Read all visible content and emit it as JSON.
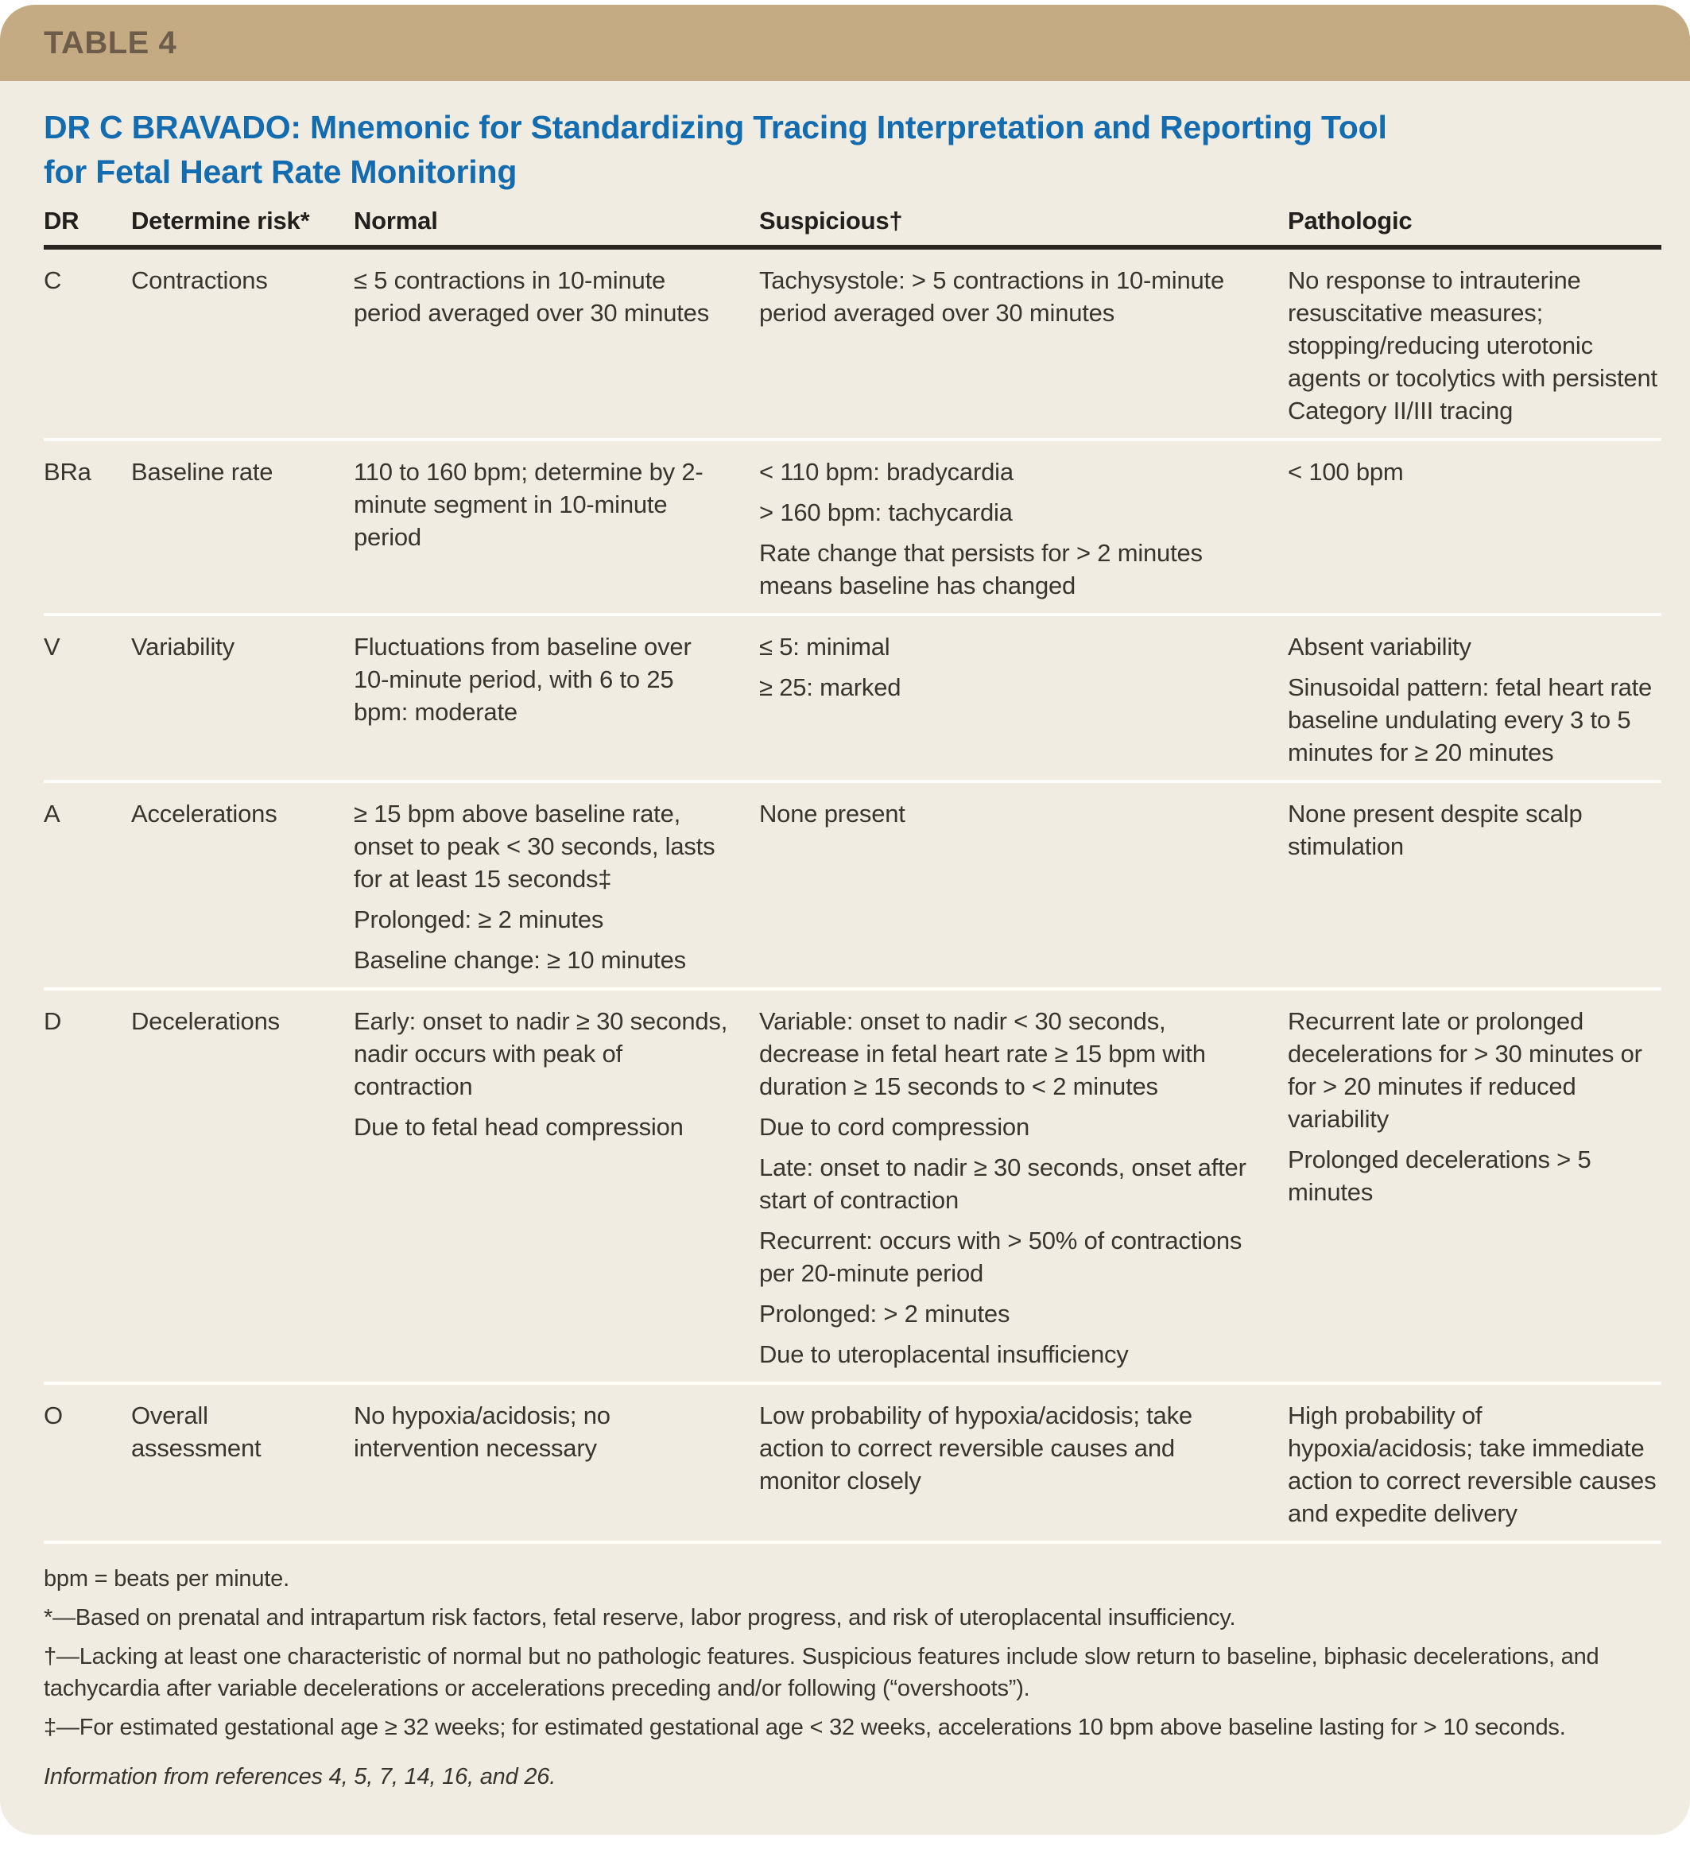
{
  "table_label": "TABLE 4",
  "title": {
    "line1": "DR C BRAVADO: Mnemonic for Standardizing Tracing Interpretation and Reporting Tool",
    "line2": "for Fetal Heart Rate Monitoring"
  },
  "columns": [
    "DR",
    "Determine risk*",
    "Normal",
    "Suspicious†",
    "Pathologic"
  ],
  "rows": [
    {
      "abbr": "C",
      "label": "Contractions",
      "normal": [
        "≤ 5 contractions in 10-minute period averaged over 30 minutes"
      ],
      "suspicious": [
        "Tachysystole: > 5 contractions in 10-minute period averaged over 30 minutes"
      ],
      "pathologic": [
        "No response to intrauterine resuscitative measures; stopping/reducing uterotonic agents or tocolytics with persistent Category II/III tracing"
      ]
    },
    {
      "abbr": "BRa",
      "label": "Baseline rate",
      "normal": [
        "110 to 160 bpm; determine by 2-minute segment in 10-minute period"
      ],
      "suspicious": [
        "< 110 bpm: bradycardia",
        "> 160 bpm: tachycardia",
        "Rate change that persists for > 2 minutes means baseline has changed"
      ],
      "pathologic": [
        "< 100 bpm"
      ]
    },
    {
      "abbr": "V",
      "label": "Variability",
      "normal": [
        "Fluctuations from baseline over 10-minute period, with 6 to 25 bpm: moderate"
      ],
      "suspicious": [
        "≤ 5: minimal",
        "≥ 25: marked"
      ],
      "pathologic": [
        "Absent variability",
        "Sinusoidal pattern: fetal heart rate baseline undulating every 3 to 5 minutes for ≥ 20 minutes"
      ]
    },
    {
      "abbr": "A",
      "label": "Accelerations",
      "normal": [
        "≥ 15 bpm above baseline rate, onset to peak < 30 seconds, lasts for at least 15 seconds‡",
        "Prolonged: ≥ 2 minutes",
        "Baseline change: ≥ 10 minutes"
      ],
      "suspicious": [
        "None present"
      ],
      "pathologic": [
        "None present despite scalp stimulation"
      ]
    },
    {
      "abbr": "D",
      "label": "Decelerations",
      "normal": [
        "Early: onset to nadir ≥ 30 seconds, nadir occurs with peak of contraction",
        "Due to fetal head compression"
      ],
      "suspicious": [
        "Variable: onset to nadir < 30 seconds, decrease in fetal heart rate ≥ 15 bpm with duration ≥ 15 seconds to < 2 minutes",
        "Due to cord compression",
        "Late: onset to nadir ≥ 30 seconds, onset after start of contraction",
        "Recurrent: occurs with > 50% of contractions per 20-minute period",
        "Prolonged: > 2 minutes",
        "Due to uteroplacental insufficiency"
      ],
      "pathologic": [
        "Recurrent late or prolonged decelerations for > 30 minutes or for > 20 minutes if reduced variability",
        "Prolonged decelerations > 5 minutes"
      ]
    },
    {
      "abbr": "O",
      "label": "Overall assessment",
      "normal": [
        "No hypoxia/acidosis; no intervention necessary"
      ],
      "suspicious": [
        "Low probability of hypoxia/acidosis; take action to correct reversible causes and monitor closely"
      ],
      "pathologic": [
        "High probability of hypoxia/acidosis; take immediate action to correct reversible causes and expedite delivery"
      ]
    }
  ],
  "footnotes": {
    "abbreviation": "bpm = beats per minute.",
    "asterisk": "*—Based on prenatal and intrapartum risk factors, fetal reserve, labor progress, and risk of uteroplacental insufficiency.",
    "dagger": "†—Lacking at least one characteristic of normal but no pathologic features. Suspicious features include slow return to baseline, biphasic decelerations, and tachycardia after variable decelerations or accelerations preceding and/or following (“overshoots”).",
    "double_dagger": "‡—For estimated gestational age ≥ 32 weeks; for estimated gestational age < 32 weeks, accelerations 10 bpm above baseline lasting for > 10 seconds.",
    "source": "Information from references 4, 5, 7, 14, 16, and 26."
  },
  "colors": {
    "header_bar": "#c5ab84",
    "header_label_text": "#6d5c49",
    "title_blue": "#146cb0",
    "card_background": "#f1ece1",
    "body_text": "#38352f",
    "header_rule": "#282520",
    "row_separator": "#fdfdfa"
  }
}
